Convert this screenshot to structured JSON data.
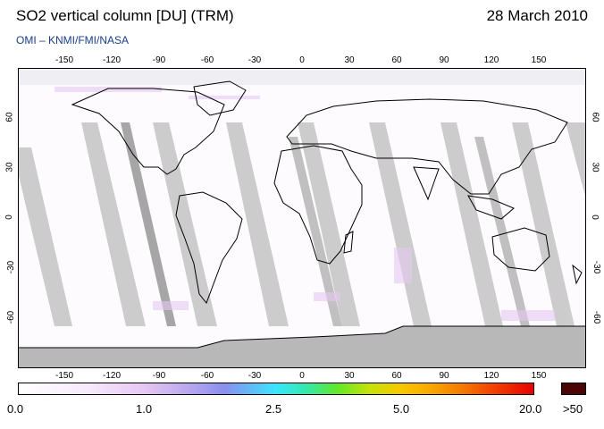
{
  "header": {
    "title": "SO2 vertical column [DU] (TRM)",
    "date": "28 March 2010",
    "source": "OMI  –  KNMI/FMI/NASA"
  },
  "map": {
    "lon_ticks": [
      "-150",
      "-120",
      "-90",
      "-60",
      "-30",
      "0",
      "30",
      "60",
      "90",
      "120",
      "150"
    ],
    "lat_ticks": [
      "60",
      "30",
      "0",
      "-30",
      "-60"
    ],
    "lon_range": [
      -180,
      180
    ],
    "lat_range": [
      -90,
      90
    ],
    "land_outline_color": "#000000",
    "no_data_color": "#c8c8c8",
    "polar_fill_color": "#b8b8b8"
  },
  "colorbar": {
    "labels": [
      "0.0",
      "1.0",
      "2.5",
      "5.0",
      "20.0"
    ],
    "overflow_label": ">50",
    "overflow_color": "#4b0505",
    "start_color": "#ffffff",
    "end_color": "#e80000"
  }
}
